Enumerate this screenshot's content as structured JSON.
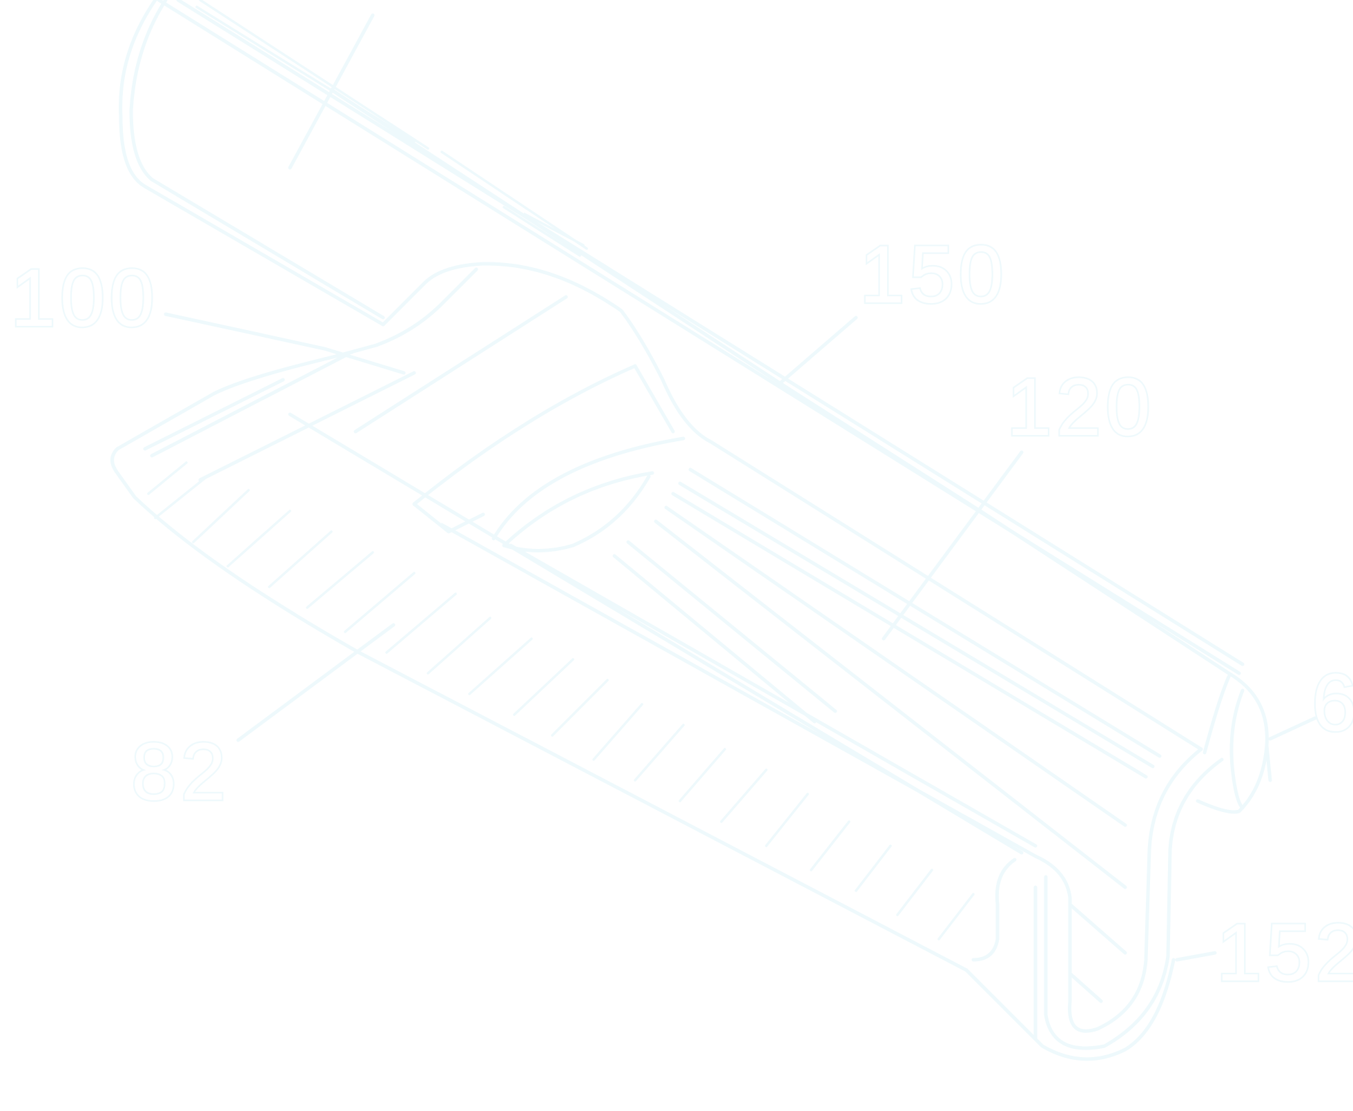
{
  "diagram": {
    "line_color": "#eef9fc",
    "background_color": "#ffffff",
    "labels": [
      {
        "id": "label-100",
        "text": "100"
      },
      {
        "id": "label-150",
        "text": "150"
      },
      {
        "id": "label-120",
        "text": "120"
      },
      {
        "id": "label-82",
        "text": "82"
      },
      {
        "id": "label-6",
        "text": "6"
      },
      {
        "id": "label-152",
        "text": "152"
      }
    ]
  }
}
